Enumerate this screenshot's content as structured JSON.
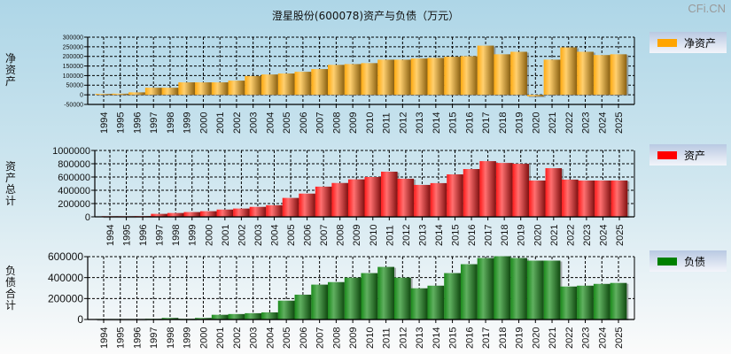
{
  "title": "澄星股份(600078)资产与负债（万元）",
  "watermark": "CFi.CN",
  "chart_data": [
    {
      "type": "bar",
      "name": "net-assets",
      "ylabel": "净资产",
      "legend": "净资产",
      "color": "#ffa500",
      "ylim": [
        -50000,
        300000
      ],
      "yticks": [
        -50000,
        0,
        50000,
        100000,
        150000,
        200000,
        250000,
        300000
      ],
      "categories": [
        "1994",
        "1995",
        "1996",
        "1997",
        "1998",
        "1999",
        "2000",
        "2001",
        "2002",
        "2003",
        "2004",
        "2005",
        "2006",
        "2007",
        "2008",
        "2009",
        "2010",
        "2011",
        "2012",
        "2013",
        "2014",
        "2015",
        "2016",
        "2017",
        "2018",
        "2019",
        "2020",
        "2021",
        "2022",
        "2023",
        "2024",
        "2025"
      ],
      "values": [
        5000,
        6000,
        13000,
        37000,
        37000,
        65000,
        65000,
        65000,
        74000,
        98000,
        106000,
        111000,
        120000,
        134000,
        156000,
        160000,
        165000,
        183000,
        183000,
        189000,
        192000,
        198000,
        201000,
        256000,
        211000,
        224000,
        -8000,
        183000,
        247000,
        224000,
        207000,
        211000
      ]
    },
    {
      "type": "bar",
      "name": "total-assets",
      "ylabel": "资产总计",
      "legend": "资产",
      "color": "#ff0000",
      "ylim": [
        0,
        1000000
      ],
      "yticks": [
        0,
        200000,
        400000,
        600000,
        800000,
        1000000
      ],
      "categories": [
        "1994",
        "1995",
        "1996",
        "1997",
        "1998",
        "1999",
        "2000",
        "2001",
        "2002",
        "2003",
        "2004",
        "2005",
        "2006",
        "2007",
        "2008",
        "2009",
        "2010",
        "2011",
        "2012",
        "2013",
        "2014",
        "2015",
        "2016",
        "2017",
        "2018",
        "2019",
        "2020",
        "2021",
        "2022",
        "2023",
        "2024",
        "2025"
      ],
      "values": [
        10000,
        10000,
        12000,
        45000,
        58000,
        72000,
        85000,
        110000,
        125000,
        150000,
        175000,
        285000,
        350000,
        455000,
        510000,
        565000,
        600000,
        680000,
        574000,
        481000,
        508000,
        640000,
        720000,
        839000,
        812000,
        799000,
        547000,
        733000,
        561000,
        547000,
        547000,
        547000
      ]
    },
    {
      "type": "bar",
      "name": "total-liabilities",
      "ylabel": "负债合计",
      "legend": "负债",
      "color": "#008000",
      "ylim": [
        0,
        600000
      ],
      "yticks": [
        0,
        200000,
        400000,
        600000
      ],
      "categories": [
        "1994",
        "1995",
        "1996",
        "1997",
        "1998",
        "1999",
        "2000",
        "2001",
        "2002",
        "2003",
        "2004",
        "2005",
        "2006",
        "2007",
        "2008",
        "2009",
        "2010",
        "2011",
        "2012",
        "2013",
        "2014",
        "2015",
        "2016",
        "2017",
        "2018",
        "2019",
        "2020",
        "2021",
        "2022",
        "2023",
        "2024",
        "2025"
      ],
      "values": [
        5000,
        5000,
        5000,
        7000,
        15000,
        7000,
        15000,
        45000,
        52000,
        60000,
        68000,
        180000,
        237000,
        333000,
        357000,
        400000,
        443000,
        502000,
        400000,
        298000,
        323000,
        443000,
        528000,
        587000,
        604000,
        587000,
        562000,
        562000,
        315000,
        323000,
        340000,
        349000
      ]
    }
  ]
}
